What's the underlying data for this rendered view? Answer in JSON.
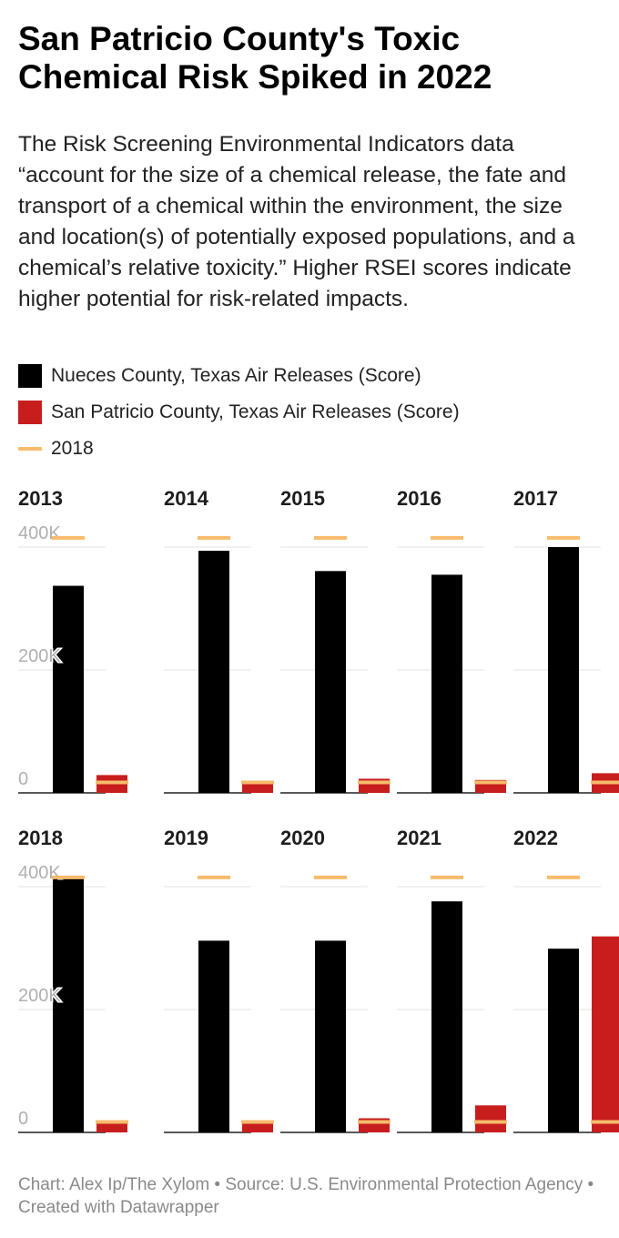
{
  "title": "San Patricio County's Toxic Chemical Risk Spiked in 2022",
  "description": "The Risk Screening Environmental Indicators data “account for the size of a chemical release, the fate and transport of a chemical within the environment, the size and location(s) of potentially exposed populations, and a chemical’s relative toxicity.” Higher RSEI scores indicate higher potential for risk-related impacts.",
  "legend": [
    {
      "label": "Nueces County, Texas Air Releases (Score)",
      "color": "#000000",
      "kind": "square"
    },
    {
      "label": "San Patricio County, Texas Air Releases (Score)",
      "color": "#c71e1d",
      "kind": "square"
    },
    {
      "label": "2018",
      "color": "#f7bb6b",
      "kind": "line"
    }
  ],
  "footer": "Chart: Alex Ip/The Xylom • Source: U.S. Environmental Protection Agency • Created with Datawrapper",
  "chart_data": {
    "type": "bar",
    "layout": "small-multiples",
    "ylim": [
      0,
      400000
    ],
    "yticks": [
      {
        "value": 0,
        "label": "0"
      },
      {
        "value": 200000,
        "label": "200K"
      },
      {
        "value": 400000,
        "label": "400K"
      }
    ],
    "grid": true,
    "series_names": [
      "Nueces County, Texas Air Releases (Score)",
      "San Patricio County, Texas Air Releases (Score)"
    ],
    "reference_line": {
      "name": "2018",
      "nueces": 415000,
      "san_patricio": 17000
    },
    "panels": [
      {
        "year": "2013",
        "nueces": 337000,
        "san_patricio": 29000
      },
      {
        "year": "2014",
        "nueces": 394000,
        "san_patricio": 18000
      },
      {
        "year": "2015",
        "nueces": 361000,
        "san_patricio": 23000
      },
      {
        "year": "2016",
        "nueces": 355000,
        "san_patricio": 21000
      },
      {
        "year": "2017",
        "nueces": 400000,
        "san_patricio": 32000
      },
      {
        "year": "2018",
        "nueces": 415000,
        "san_patricio": 17000
      },
      {
        "year": "2019",
        "nueces": 312000,
        "san_patricio": 19000
      },
      {
        "year": "2020",
        "nueces": 312000,
        "san_patricio": 23000
      },
      {
        "year": "2021",
        "nueces": 376000,
        "san_patricio": 44000
      },
      {
        "year": "2022",
        "nueces": 299000,
        "san_patricio": 319000
      }
    ]
  }
}
